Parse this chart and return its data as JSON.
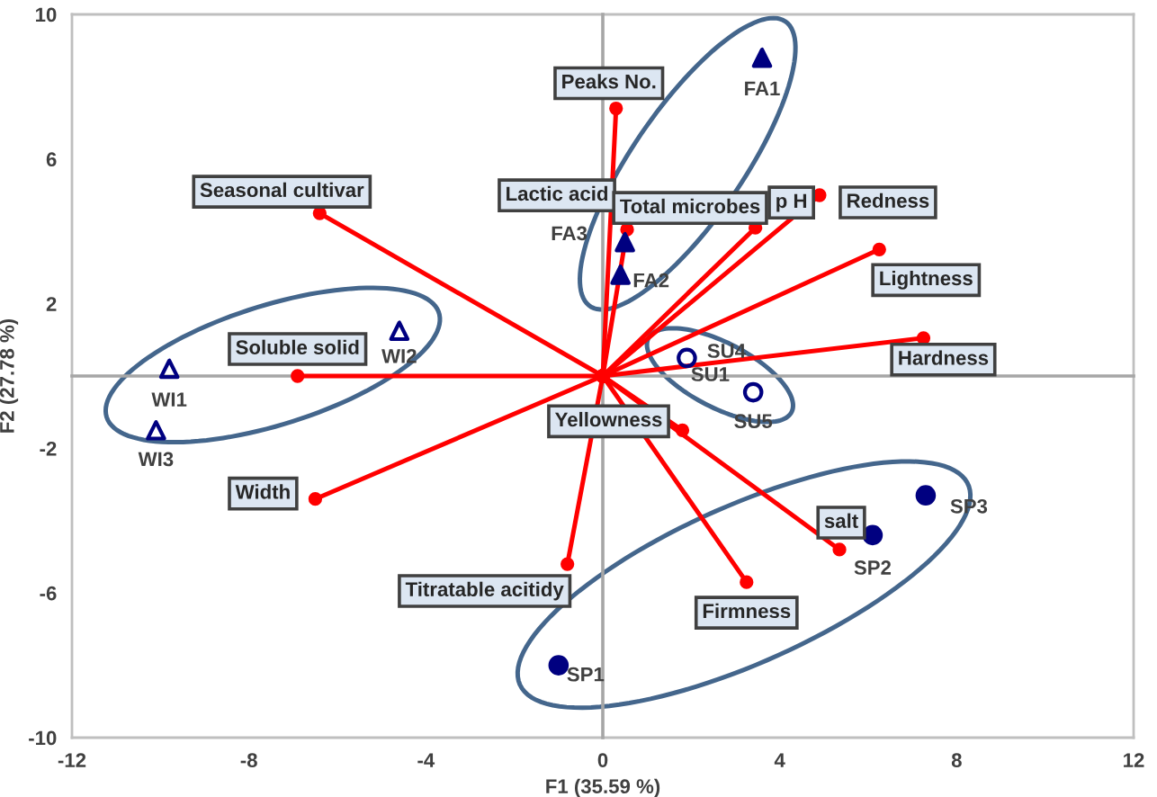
{
  "chart_data": {
    "type": "scatter",
    "xlabel": "F1 (35.59 %)",
    "ylabel": "F2 (27.78 %)",
    "xlim": [
      -12,
      12
    ],
    "ylim": [
      -10,
      10
    ],
    "xticks": [
      -12,
      -8,
      -4,
      0,
      4,
      8,
      12
    ],
    "yticks": [
      -10,
      -6,
      -2,
      2,
      6,
      10
    ],
    "series": [
      {
        "marker": "triangle",
        "color": "#000080",
        "x": [
          3.6,
          0.5,
          0.4
        ],
        "values": [
          8.8,
          3.7,
          2.8
        ]
      },
      {
        "marker": "triangle",
        "color": "#000080",
        "x": [
          -9.8,
          -4.6,
          -10.1
        ],
        "values": [
          0.2,
          1.25,
          -1.5
        ]
      },
      {
        "marker": "circle",
        "color": "#000080",
        "x": [
          1.9,
          3.4
        ],
        "values": [
          0.5,
          -0.45
        ]
      },
      {
        "marker": "circle",
        "color": "#000080",
        "x": [
          -1.0,
          6.1,
          7.3
        ],
        "values": [
          -8.0,
          -4.4,
          -3.3
        ]
      },
      {
        "type": "line",
        "marker": "circle",
        "color": "#ff0000",
        "x": [
          0,
          0.3
        ],
        "values": [
          0,
          7.4
        ]
      },
      {
        "type": "line",
        "marker": "circle",
        "color": "#ff0000",
        "x": [
          0,
          -6.4
        ],
        "values": [
          0,
          4.5
        ]
      },
      {
        "type": "line",
        "marker": "circle",
        "color": "#ff0000",
        "x": [
          0,
          0.55
        ],
        "values": [
          0,
          4.05
        ]
      },
      {
        "type": "line",
        "marker": "circle",
        "color": "#ff0000",
        "x": [
          0,
          3.45
        ],
        "values": [
          0,
          4.1
        ]
      },
      {
        "type": "line",
        "marker": "circle",
        "color": "#ff0000",
        "x": [
          0,
          4.9
        ],
        "values": [
          0,
          5.0
        ]
      },
      {
        "type": "line",
        "marker": "circle",
        "color": "#ff0000",
        "x": [
          0,
          6.25
        ],
        "values": [
          0,
          3.5
        ]
      },
      {
        "type": "line",
        "marker": "circle",
        "color": "#ff0000",
        "x": [
          0,
          7.25
        ],
        "values": [
          0,
          1.05
        ]
      },
      {
        "type": "line",
        "marker": "circle",
        "color": "#ff0000",
        "x": [
          0,
          -6.9
        ],
        "values": [
          0,
          0.0
        ]
      },
      {
        "type": "line",
        "marker": "circle",
        "color": "#ff0000",
        "x": [
          0,
          -6.5
        ],
        "values": [
          0,
          -3.4
        ]
      },
      {
        "type": "line",
        "marker": "circle",
        "color": "#ff0000",
        "x": [
          0,
          1.8
        ],
        "values": [
          0,
          -1.5
        ]
      },
      {
        "type": "line",
        "marker": "circle",
        "color": "#ff0000",
        "x": [
          0,
          -0.8
        ],
        "values": [
          0,
          -5.2
        ]
      },
      {
        "type": "line",
        "marker": "circle",
        "color": "#ff0000",
        "x": [
          0,
          3.25
        ],
        "values": [
          0,
          -5.7
        ]
      },
      {
        "type": "line",
        "marker": "circle",
        "color": "#ff0000",
        "x": [
          0,
          5.35
        ],
        "values": [
          0,
          -4.8
        ]
      }
    ],
    "annotations": [
      {
        "text": "Peaks No.",
        "x": 0.3,
        "y": 7.4
      },
      {
        "text": "Seasonal cultivar",
        "x": -6.4,
        "y": 4.5
      },
      {
        "text": "Lactic acid",
        "x": 0.55,
        "y": 4.05
      },
      {
        "text": "Total microbes",
        "x": 0.55,
        "y": 4.05
      },
      {
        "text": "p H",
        "x": 3.45,
        "y": 4.1
      },
      {
        "text": "Redness",
        "x": 4.9,
        "y": 5.0
      },
      {
        "text": "Lightness",
        "x": 6.25,
        "y": 3.5
      },
      {
        "text": "Hardness",
        "x": 7.25,
        "y": 1.05
      },
      {
        "text": "Soluble solid",
        "x": -6.9,
        "y": 0.0
      },
      {
        "text": "Yellowness",
        "x": 1.8,
        "y": -1.5
      },
      {
        "text": "Width",
        "x": -6.5,
        "y": -3.4
      },
      {
        "text": "Titratable acitidy",
        "x": -0.8,
        "y": -5.2
      },
      {
        "text": "Firmness",
        "x": 3.25,
        "y": -5.7
      },
      {
        "text": "salt",
        "x": 5.35,
        "y": -4.8
      },
      {
        "text": "FA1",
        "x": 3.6,
        "y": 8.8
      },
      {
        "text": "FA3",
        "x": 0.5,
        "y": 3.7
      },
      {
        "text": "FA2",
        "x": 0.4,
        "y": 2.8
      },
      {
        "text": "WI1",
        "x": -9.8,
        "y": 0.2
      },
      {
        "text": "WI2",
        "x": -4.6,
        "y": 1.25
      },
      {
        "text": "WI3",
        "x": -10.1,
        "y": -1.5
      },
      {
        "text": "SU4",
        "x": 1.9,
        "y": 0.5
      },
      {
        "text": "SU1",
        "x": 1.9,
        "y": 0.5
      },
      {
        "text": "SU5",
        "x": 3.4,
        "y": -0.45
      },
      {
        "text": "SP3",
        "x": 7.3,
        "y": -3.3
      },
      {
        "text": "SP2",
        "x": 6.1,
        "y": -4.4
      },
      {
        "text": "SP1",
        "x": -1.0,
        "y": -8.0
      }
    ]
  }
}
